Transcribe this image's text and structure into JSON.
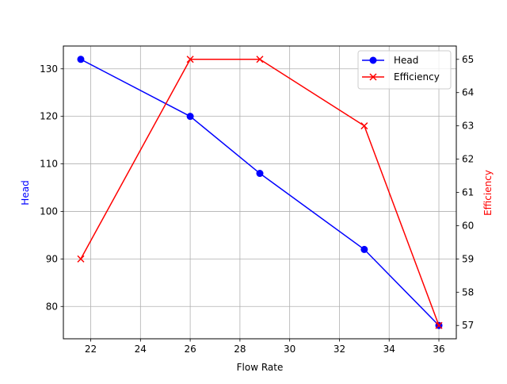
{
  "chart_data": {
    "type": "line",
    "title": "",
    "xlabel": "Flow Rate",
    "x": [
      21.6,
      26.0,
      28.8,
      33.0,
      36.0
    ],
    "xlim": [
      20.9,
      36.7
    ],
    "xticks": [
      22,
      24,
      26,
      28,
      30,
      32,
      34,
      36
    ],
    "grid": true,
    "legend_position": "upper right",
    "series": [
      {
        "name": "Head",
        "axis": "left",
        "color": "#0000ff",
        "marker": "o",
        "values": [
          132,
          120,
          108,
          92,
          76
        ],
        "ylabel": "Head",
        "ylim": [
          73.2,
          134.8
        ],
        "yticks": [
          80,
          90,
          100,
          110,
          120,
          130
        ]
      },
      {
        "name": "Efficiency",
        "axis": "right",
        "color": "#ff0000",
        "marker": "x",
        "values": [
          59,
          65,
          65,
          63,
          57
        ],
        "ylabel": "Efficiency",
        "ylim": [
          56.6,
          65.4
        ],
        "yticks": [
          57,
          58,
          59,
          60,
          61,
          62,
          63,
          64,
          65
        ]
      }
    ]
  }
}
